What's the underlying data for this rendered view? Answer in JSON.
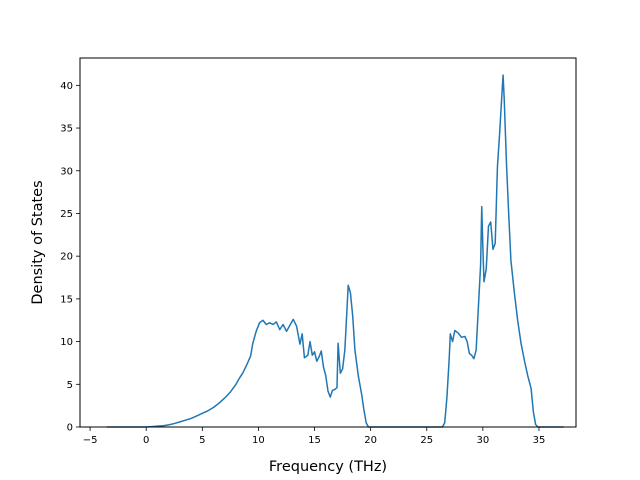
{
  "chart_data": {
    "type": "line",
    "title": "",
    "xlabel": "Frequency (THz)",
    "ylabel": "Density of States",
    "xlim": [
      -5.9,
      38.3
    ],
    "ylim": [
      0,
      43.2
    ],
    "xticks": [
      -5,
      0,
      5,
      10,
      15,
      20,
      25,
      30,
      35
    ],
    "yticks": [
      0,
      5,
      10,
      15,
      20,
      25,
      30,
      35,
      40
    ],
    "grid": false,
    "legend": "none",
    "series": [
      {
        "color": "#1f77b4",
        "points": [
          [
            -3.5,
            0
          ],
          [
            0.0,
            0
          ],
          [
            0.5,
            0.05
          ],
          [
            1.0,
            0.1
          ],
          [
            1.5,
            0.15
          ],
          [
            2.0,
            0.25
          ],
          [
            2.5,
            0.4
          ],
          [
            3.0,
            0.6
          ],
          [
            3.5,
            0.8
          ],
          [
            4.0,
            1.0
          ],
          [
            4.5,
            1.3
          ],
          [
            5.0,
            1.6
          ],
          [
            5.5,
            1.9
          ],
          [
            6.0,
            2.3
          ],
          [
            6.5,
            2.8
          ],
          [
            7.0,
            3.4
          ],
          [
            7.5,
            4.1
          ],
          [
            8.0,
            5.0
          ],
          [
            8.3,
            5.7
          ],
          [
            8.6,
            6.3
          ],
          [
            9.0,
            7.4
          ],
          [
            9.3,
            8.3
          ],
          [
            9.5,
            9.8
          ],
          [
            9.8,
            11.2
          ],
          [
            10.1,
            12.2
          ],
          [
            10.4,
            12.5
          ],
          [
            10.7,
            12.0
          ],
          [
            11.0,
            12.2
          ],
          [
            11.3,
            12.0
          ],
          [
            11.6,
            12.3
          ],
          [
            11.9,
            11.4
          ],
          [
            12.2,
            12.0
          ],
          [
            12.5,
            11.2
          ],
          [
            12.8,
            11.9
          ],
          [
            13.1,
            12.6
          ],
          [
            13.4,
            11.8
          ],
          [
            13.7,
            9.7
          ],
          [
            13.9,
            10.9
          ],
          [
            14.1,
            8.1
          ],
          [
            14.4,
            8.4
          ],
          [
            14.6,
            10.0
          ],
          [
            14.8,
            8.4
          ],
          [
            15.0,
            8.8
          ],
          [
            15.2,
            7.7
          ],
          [
            15.4,
            8.2
          ],
          [
            15.6,
            8.9
          ],
          [
            15.8,
            7.0
          ],
          [
            16.0,
            6.0
          ],
          [
            16.2,
            4.2
          ],
          [
            16.4,
            3.5
          ],
          [
            16.6,
            4.3
          ],
          [
            16.8,
            4.4
          ],
          [
            17.0,
            4.6
          ],
          [
            17.1,
            9.8
          ],
          [
            17.3,
            6.3
          ],
          [
            17.5,
            6.8
          ],
          [
            17.7,
            9.0
          ],
          [
            17.9,
            14.0
          ],
          [
            18.0,
            16.6
          ],
          [
            18.2,
            15.7
          ],
          [
            18.4,
            13.0
          ],
          [
            18.6,
            9.0
          ],
          [
            18.9,
            6.0
          ],
          [
            19.2,
            3.8
          ],
          [
            19.4,
            2.0
          ],
          [
            19.6,
            0.5
          ],
          [
            19.8,
            0
          ],
          [
            26.4,
            0
          ],
          [
            26.6,
            0.5
          ],
          [
            26.8,
            3.5
          ],
          [
            27.0,
            8.0
          ],
          [
            27.1,
            10.9
          ],
          [
            27.3,
            10.0
          ],
          [
            27.5,
            11.3
          ],
          [
            27.8,
            11.0
          ],
          [
            28.1,
            10.5
          ],
          [
            28.4,
            10.6
          ],
          [
            28.6,
            10.0
          ],
          [
            28.8,
            8.6
          ],
          [
            29.0,
            8.4
          ],
          [
            29.2,
            8.0
          ],
          [
            29.4,
            9.0
          ],
          [
            29.6,
            14.0
          ],
          [
            29.8,
            19.0
          ],
          [
            29.9,
            25.8
          ],
          [
            30.0,
            21.0
          ],
          [
            30.1,
            17.0
          ],
          [
            30.3,
            18.5
          ],
          [
            30.5,
            23.5
          ],
          [
            30.7,
            24.0
          ],
          [
            30.9,
            20.8
          ],
          [
            31.1,
            21.5
          ],
          [
            31.3,
            30.5
          ],
          [
            31.5,
            34.5
          ],
          [
            31.7,
            39.0
          ],
          [
            31.8,
            41.2
          ],
          [
            31.9,
            38.5
          ],
          [
            32.1,
            31.0
          ],
          [
            32.3,
            25.0
          ],
          [
            32.5,
            19.5
          ],
          [
            32.8,
            15.8
          ],
          [
            33.1,
            12.5
          ],
          [
            33.4,
            9.8
          ],
          [
            33.7,
            7.8
          ],
          [
            34.0,
            6.0
          ],
          [
            34.3,
            4.5
          ],
          [
            34.5,
            1.8
          ],
          [
            34.7,
            0.3
          ],
          [
            34.9,
            0
          ],
          [
            37.2,
            0
          ]
        ]
      }
    ]
  }
}
